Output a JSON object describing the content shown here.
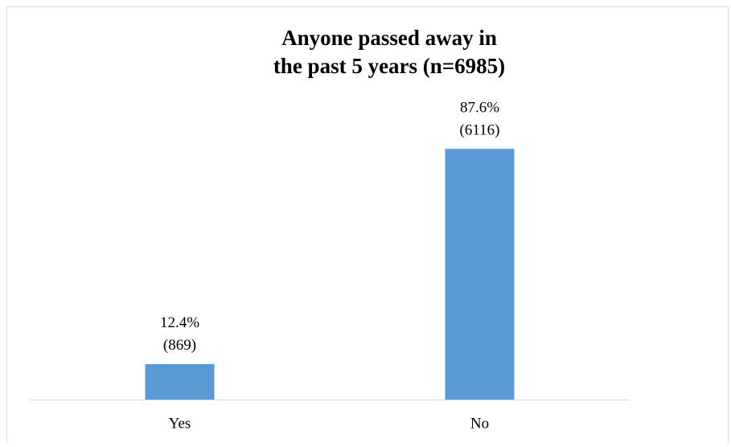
{
  "chart_data": {
    "type": "bar",
    "title": [
      "Anyone passed away in",
      "the past 5 years (n=6985)"
    ],
    "categories": [
      "Yes",
      "No"
    ],
    "values": [
      12.4,
      87.6
    ],
    "value_labels": [
      "12.4%",
      "87.6%"
    ],
    "counts": [
      869,
      6116
    ],
    "count_labels": [
      "(869)",
      "(6116)"
    ],
    "color": "#5b9bd5"
  }
}
